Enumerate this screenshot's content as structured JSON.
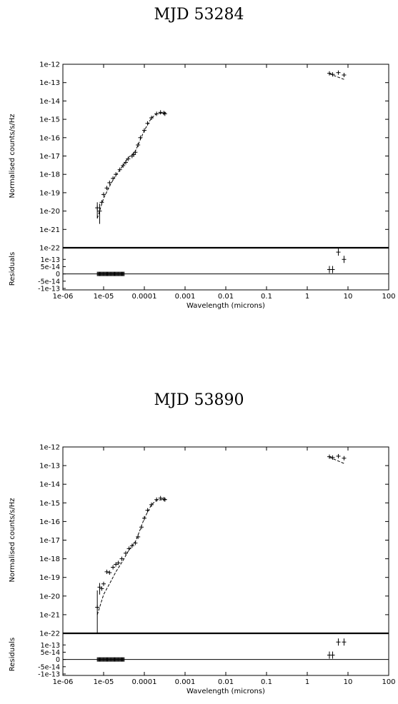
{
  "chart_data": [
    {
      "type": "scatter",
      "title": "MJD 53284",
      "xlabel": "Wavelength (microns)",
      "ylabel": "Normalised counts/s/Hz",
      "residual_ylabel": "Residuals",
      "xscale": "log",
      "yscale": "log",
      "xlim": [
        1e-06,
        100
      ],
      "ylim": [
        1e-22,
        1e-12
      ],
      "x_ticks": [
        "1e-06",
        "1e-05",
        "0.0001",
        "0.001",
        "0.01",
        "0.1",
        "1",
        "10",
        "100"
      ],
      "y_ticks": [
        "1e-12",
        "1e-13",
        "1e-14",
        "1e-15",
        "1e-16",
        "1e-17",
        "1e-18",
        "1e-19",
        "1e-20",
        "1e-21",
        "1e-22"
      ],
      "residual_ticks": [
        "1e-13",
        "5e-14",
        "0",
        "-5e-14",
        "-1e-13"
      ],
      "residual_ylim": [
        -1.1e-13,
        1.8e-13
      ],
      "uv_xray_start": 7e-06,
      "uv_xray_end": 3.2e-05,
      "series": [
        {
          "style": "points-with-errorbars",
          "x": [
            7e-06,
            8e-06,
            9e-06,
            1e-05,
            1.2e-05,
            1.4e-05,
            1.7e-05,
            2e-05,
            2.5e-05,
            3e-05,
            3.5e-05,
            4e-05,
            5e-05,
            5.5e-05,
            6e-05,
            7e-05,
            8e-05,
            0.0001,
            0.00012,
            0.00015,
            0.0002,
            0.00025,
            0.0003,
            0.00032,
            3.5,
            4.2,
            5.8,
            8.0
          ],
          "y": [
            1.5e-20,
            1e-20,
            3e-20,
            8e-20,
            1.8e-19,
            3.5e-19,
            6e-19,
            1e-18,
            1.8e-18,
            3e-18,
            4.5e-18,
            7e-18,
            1e-17,
            1.2e-17,
            1.6e-17,
            4e-17,
            1e-16,
            2.5e-16,
            6e-16,
            1.2e-15,
            2e-15,
            2.4e-15,
            2.2e-15,
            2e-15,
            3.2e-13,
            2.8e-13,
            3.5e-13,
            2.6e-13
          ],
          "yerr_low": [
            4e-21,
            2e-21
          ],
          "yerr_high": [
            3e-20,
            2.5e-20
          ],
          "residuals_x": [
            3.5,
            4.2,
            5.8,
            8.0
          ],
          "residuals_y": [
            3e-14,
            3e-14,
            1.5e-13,
            1e-13
          ]
        },
        {
          "style": "dashed-model",
          "x": [
            7e-06,
            1e-05,
            1.5e-05,
            2e-05,
            3e-05,
            4e-05,
            5e-05,
            6e-05,
            8e-05,
            0.0001,
            0.00015,
            0.0002,
            0.0003,
            0.00035
          ],
          "y": [
            4e-21,
            5e-20,
            3e-19,
            9e-19,
            3e-18,
            8e-18,
            1.2e-17,
            1.8e-17,
            8e-17,
            2.5e-16,
            1.2e-15,
            2e-15,
            2.3e-15,
            2.3e-15
          ],
          "x2": [
            3.5,
            8.0
          ],
          "y2": [
            3e-13,
            1.5e-13
          ]
        }
      ]
    },
    {
      "type": "scatter",
      "title": "MJD 53890",
      "xlabel": "Wavelength (microns)",
      "ylabel": "Normalised counts/s/Hz",
      "residual_ylabel": "Residuals",
      "xscale": "log",
      "yscale": "log",
      "xlim": [
        1e-06,
        100
      ],
      "ylim": [
        1e-22,
        1e-12
      ],
      "x_ticks": [
        "1e-06",
        "1e-05",
        "0.0001",
        "0.001",
        "0.01",
        "0.1",
        "1",
        "10",
        "100"
      ],
      "y_ticks": [
        "1e-12",
        "1e-13",
        "1e-14",
        "1e-15",
        "1e-16",
        "1e-17",
        "1e-18",
        "1e-19",
        "1e-20",
        "1e-21",
        "1e-22"
      ],
      "residual_ticks": [
        "1e-13",
        "5e-14",
        "0",
        "-5e-14",
        "-1e-13"
      ],
      "residual_ylim": [
        -1.1e-13,
        1.8e-13
      ],
      "uv_xray_start": 7e-06,
      "uv_xray_end": 3.2e-05,
      "series": [
        {
          "style": "points-with-errorbars",
          "x": [
            7e-06,
            8e-06,
            9e-06,
            1e-05,
            1.2e-05,
            1.4e-05,
            1.7e-05,
            2e-05,
            2.3e-05,
            2.8e-05,
            3.5e-05,
            4.2e-05,
            5e-05,
            6e-05,
            7e-05,
            8.5e-05,
            0.0001,
            0.00012,
            0.00015,
            0.0002,
            0.00025,
            0.0003,
            0.00032,
            3.5,
            4.2,
            5.8,
            8.0
          ],
          "y": [
            2.5e-21,
            3e-20,
            2.5e-20,
            4.5e-20,
            2e-19,
            1.8e-19,
            3.5e-19,
            5e-19,
            6e-19,
            1e-18,
            2e-18,
            3.5e-18,
            5e-18,
            7e-18,
            1.5e-17,
            5e-17,
            1.5e-16,
            4e-16,
            8e-16,
            1.5e-15,
            1.8e-15,
            1.6e-15,
            1.5e-15,
            3e-13,
            2.7e-13,
            3.2e-13,
            2.5e-13
          ],
          "yerr_low": [
            1e-22,
            1.2e-20
          ],
          "yerr_high": [
            2e-20,
            5e-20
          ],
          "residuals_x": [
            3.5,
            4.2,
            5.8,
            8.0
          ],
          "residuals_y": [
            3e-14,
            3e-14,
            1.2e-13,
            1.2e-13
          ]
        },
        {
          "style": "dashed-model",
          "x": [
            7e-06,
            1e-05,
            1.5e-05,
            2e-05,
            3e-05,
            4e-05,
            5e-05,
            6e-05,
            8e-05,
            0.0001,
            0.00015,
            0.0002,
            0.0003,
            0.00035
          ],
          "y": [
            1e-21,
            1.2e-20,
            6e-20,
            2e-19,
            8e-19,
            2.5e-18,
            5e-18,
            8e-18,
            4e-17,
            1.5e-16,
            8e-16,
            1.4e-15,
            1.5e-15,
            1.5e-15
          ],
          "x2": [
            3.5,
            8.0
          ],
          "y2": [
            2.8e-13,
            1.3e-13
          ]
        }
      ]
    }
  ]
}
